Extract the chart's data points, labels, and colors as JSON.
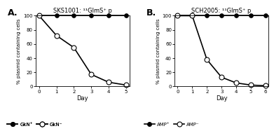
{
  "panel_A": {
    "title": "SKS1001: ¹¹GlmS⁺ p",
    "x_label": "Day",
    "y_label": "% plasmid containing cells",
    "x_ticks": [
      0,
      1,
      2,
      3,
      4,
      5
    ],
    "series": [
      {
        "label": "GkN⁺",
        "x": [
          0,
          1,
          2,
          3,
          4,
          5
        ],
        "y": [
          100,
          100,
          100,
          100,
          100,
          100
        ],
        "marker": "o",
        "marker_face": "black",
        "color": "black",
        "markersize": 4,
        "linewidth": 1.2
      },
      {
        "label": "GkN⁻",
        "x": [
          0,
          1,
          2,
          3,
          4,
          5
        ],
        "y": [
          100,
          72,
          55,
          17,
          6,
          2
        ],
        "marker": "o",
        "marker_face": "white",
        "color": "black",
        "markersize": 5,
        "linewidth": 1.2
      }
    ],
    "legend_labels": [
      "GkN⁺",
      "GkN⁻"
    ]
  },
  "panel_B": {
    "title": "SCH2005: ¹¹GlmS⁺ p",
    "x_label": "Day",
    "y_label": "% plasmid containing cells",
    "x_ticks": [
      0,
      1,
      2,
      3,
      4,
      5,
      6
    ],
    "series": [
      {
        "label": "AMP⁺",
        "x": [
          0,
          1,
          2,
          3,
          4,
          5,
          6
        ],
        "y": [
          100,
          100,
          100,
          100,
          100,
          100,
          100
        ],
        "marker": "o",
        "marker_face": "black",
        "color": "black",
        "markersize": 4,
        "linewidth": 1.2
      },
      {
        "label": "AMP⁻",
        "x": [
          0,
          1,
          2,
          3,
          4,
          5,
          6
        ],
        "y": [
          100,
          100,
          38,
          13,
          5,
          2,
          1
        ],
        "marker": "o",
        "marker_face": "white",
        "color": "black",
        "markersize": 5,
        "linewidth": 1.2
      }
    ],
    "legend_labels": [
      "AMP⁺",
      "AMP⁻"
    ]
  },
  "figure_bg": "white",
  "panel_label_A": "A.",
  "panel_label_B": "B.",
  "ylim": [
    0,
    100
  ],
  "y_ticks": [
    0,
    20,
    40,
    60,
    80,
    100
  ]
}
